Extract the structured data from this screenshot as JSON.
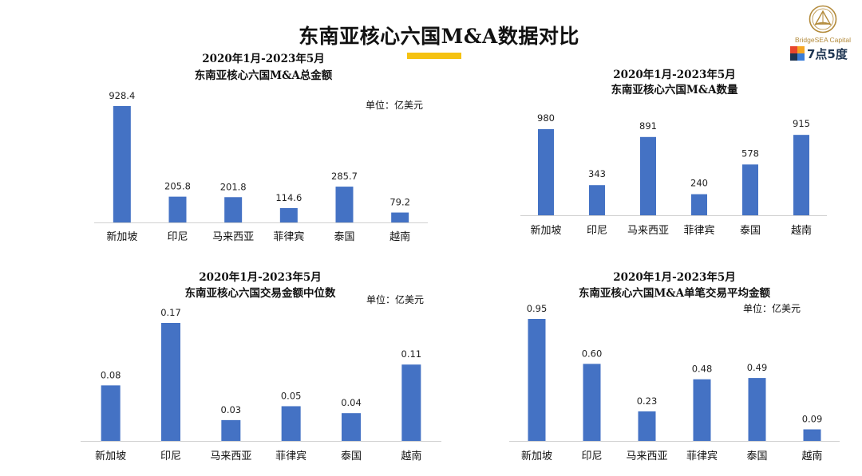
{
  "page": {
    "title": "东南亚核心六国M&A数据对比"
  },
  "logo": {
    "brand": "BridgeSEA Capital",
    "wordmark": "7点5度"
  },
  "colors": {
    "bar": "#4472C4",
    "accent": "#F5C211",
    "axis": "#D0D0D0"
  },
  "chart_data": [
    {
      "type": "bar",
      "title": [
        "2020年1月-2023年5月",
        "东南亚核心六国M&A总金额"
      ],
      "unit": "单位：亿美元",
      "categories": [
        "新加坡",
        "印尼",
        "马来西亚",
        "菲律宾",
        "泰国",
        "越南"
      ],
      "values": [
        928.4,
        205.8,
        201.8,
        114.6,
        285.7,
        79.2
      ],
      "value_labels": [
        "928.4",
        "205.8",
        "201.8",
        "114.6",
        "285.7",
        "79.2"
      ],
      "ylim": [
        0,
        928.4
      ],
      "grid": false
    },
    {
      "type": "bar",
      "title": [
        "2020年1月-2023年5月",
        "东南亚核心六国M&A数量"
      ],
      "unit": "",
      "categories": [
        "新加坡",
        "印尼",
        "马来西亚",
        "菲律宾",
        "泰国",
        "越南"
      ],
      "values": [
        980,
        343,
        891,
        240,
        578,
        915
      ],
      "value_labels": [
        "980",
        "343",
        "891",
        "240",
        "578",
        "915"
      ],
      "ylim": [
        0,
        980
      ],
      "grid": false
    },
    {
      "type": "bar",
      "title": [
        "2020年1月-2023年5月",
        "东南亚核心六国交易金额中位数"
      ],
      "unit": "单位：亿美元",
      "categories": [
        "新加坡",
        "印尼",
        "马来西亚",
        "菲律宾",
        "泰国",
        "越南"
      ],
      "values": [
        0.08,
        0.17,
        0.03,
        0.05,
        0.04,
        0.11
      ],
      "value_labels": [
        "0.08",
        "0.17",
        "0.03",
        "0.05",
        "0.04",
        "0.11"
      ],
      "ylim": [
        0,
        0.17
      ],
      "grid": false
    },
    {
      "type": "bar",
      "title": [
        "2020年1月-2023年5月",
        "东南亚核心六国M&A单笔交易平均金额"
      ],
      "unit": "单位：亿美元",
      "categories": [
        "新加坡",
        "印尼",
        "马来西亚",
        "菲律宾",
        "泰国",
        "越南"
      ],
      "values": [
        0.95,
        0.6,
        0.23,
        0.48,
        0.49,
        0.09
      ],
      "value_labels": [
        "0.95",
        "0.60",
        "0.23",
        "0.48",
        "0.49",
        "0.09"
      ],
      "ylim": [
        0,
        0.95
      ],
      "grid": false
    }
  ]
}
